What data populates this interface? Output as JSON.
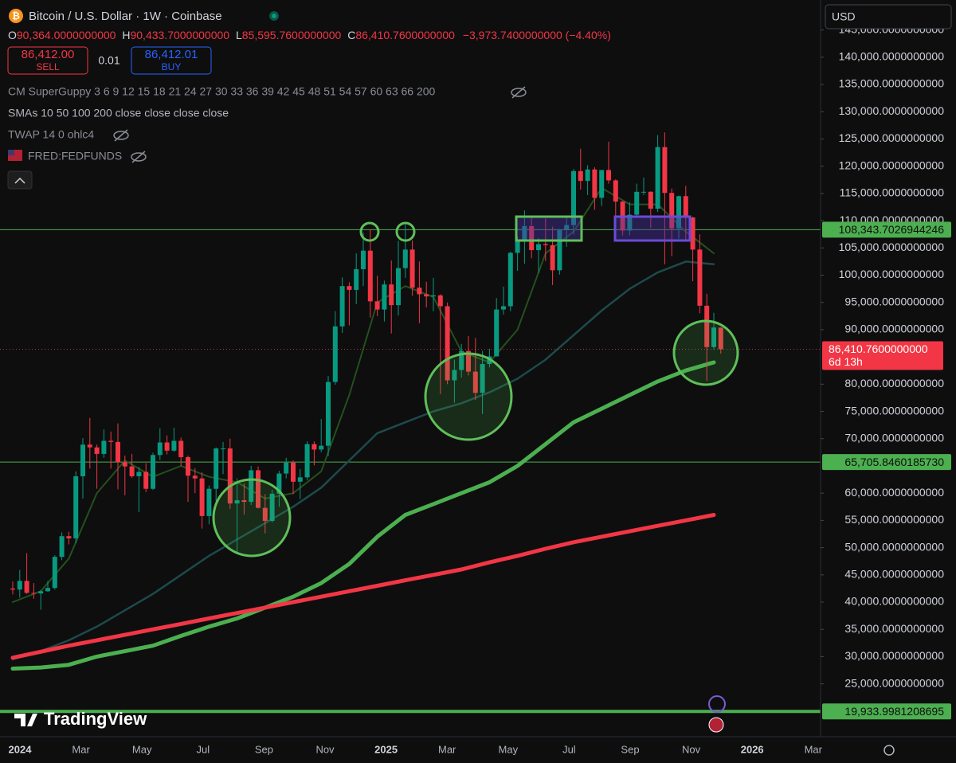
{
  "header": {
    "title": "Bitcoin / U.S. Dollar · 1W · Coinbase",
    "ohlc": [
      {
        "key": "O",
        "value": "90,364.0000000000"
      },
      {
        "key": "H",
        "value": "90,433.7000000000"
      },
      {
        "key": "L",
        "value": "85,595.7600000000"
      },
      {
        "key": "C",
        "value": "86,410.7600000000"
      }
    ],
    "change": "−3,973.7400000000 (−4.40%)",
    "sell": {
      "price": "86,412.00",
      "label": "SELL"
    },
    "spread": "0.01",
    "buy": {
      "price": "86,412.01",
      "label": "BUY"
    },
    "indicators": [
      "CM SuperGuppy 3 6 9 12 15 18 21 24 27 30 33 36 39 42 45 48 51 54 57 60 63 66 200",
      "SMAs 10 50 100 200 close close close close",
      "TWAP 14 0 ohlc4",
      "FRED:FEDFUNDS"
    ],
    "currency": "USD",
    "logo": "TradingView"
  },
  "chart_data": {
    "type": "candlestick",
    "up_color": "#089981",
    "down_color": "#f23645",
    "ylim": [
      15300,
      150500
    ],
    "yticks": [
      {
        "value": 25000,
        "label": "25,000.0000000000"
      },
      {
        "value": 30000,
        "label": "30,000.0000000000"
      },
      {
        "value": 35000,
        "label": "35,000.0000000000"
      },
      {
        "value": 40000,
        "label": "40,000.0000000000"
      },
      {
        "value": 45000,
        "label": "45,000.0000000000"
      },
      {
        "value": 50000,
        "label": "50,000.0000000000"
      },
      {
        "value": 55000,
        "label": "55,000.0000000000"
      },
      {
        "value": 60000,
        "label": "60,000.0000000000"
      },
      {
        "value": 70000,
        "label": "70,000.0000000000"
      },
      {
        "value": 75000,
        "label": "75,000.0000000000"
      },
      {
        "value": 80000,
        "label": "80,000.0000000000"
      },
      {
        "value": 90000,
        "label": "90,000.0000000000"
      },
      {
        "value": 95000,
        "label": "95,000.0000000000"
      },
      {
        "value": 100000,
        "label": "100,000.0000000000"
      },
      {
        "value": 105000,
        "label": "105,000.0000000000"
      },
      {
        "value": 110000,
        "label": "110,000.0000000000"
      },
      {
        "value": 115000,
        "label": "115,000.0000000000"
      },
      {
        "value": 120000,
        "label": "120,000.0000000000"
      },
      {
        "value": 125000,
        "label": "125,000.0000000000"
      },
      {
        "value": 130000,
        "label": "130,000.0000000000"
      },
      {
        "value": 135000,
        "label": "135,000.0000000000"
      },
      {
        "value": 140000,
        "label": "140,000.0000000000"
      },
      {
        "value": 145000,
        "label": "145,000.0000000000"
      }
    ],
    "x_labels": [
      "2024",
      "Mar",
      "May",
      "Jul",
      "Sep",
      "Nov",
      "2025",
      "Mar",
      "May",
      "Jul",
      "Sep",
      "Nov",
      "2026",
      "Mar"
    ],
    "candles": [
      [
        42500,
        43800,
        41400,
        42300
      ],
      [
        42300,
        45900,
        40800,
        43900
      ],
      [
        43900,
        49000,
        41500,
        41700
      ],
      [
        41700,
        43500,
        40600,
        41600
      ],
      [
        41600,
        42200,
        38600,
        42000
      ],
      [
        42000,
        43900,
        41900,
        42600
      ],
      [
        42600,
        48600,
        42300,
        48300
      ],
      [
        48300,
        52800,
        47700,
        52100
      ],
      [
        52100,
        52900,
        50600,
        51700
      ],
      [
        51700,
        64000,
        50800,
        63100
      ],
      [
        63100,
        70100,
        59000,
        68900
      ],
      [
        68900,
        73800,
        64500,
        68400
      ],
      [
        68400,
        68900,
        60800,
        67200
      ],
      [
        67200,
        71700,
        66500,
        69600
      ],
      [
        69600,
        71300,
        64500,
        69400
      ],
      [
        69400,
        72800,
        60700,
        65700
      ],
      [
        65700,
        66900,
        59600,
        64900
      ],
      [
        64900,
        67200,
        62800,
        63100
      ],
      [
        63100,
        64800,
        56500,
        63900
      ],
      [
        63900,
        65500,
        60200,
        60800
      ],
      [
        60800,
        67400,
        60600,
        67000
      ],
      [
        67000,
        71900,
        66100,
        69300
      ],
      [
        69300,
        70600,
        67100,
        67800
      ],
      [
        67800,
        72000,
        67600,
        69600
      ],
      [
        69600,
        70200,
        65000,
        66600
      ],
      [
        66600,
        66900,
        58400,
        63200
      ],
      [
        63200,
        64600,
        60000,
        62700
      ],
      [
        62700,
        63800,
        53500,
        55800
      ],
      [
        55800,
        61400,
        54300,
        60800
      ],
      [
        60800,
        68400,
        58500,
        68200
      ],
      [
        68200,
        69400,
        63500,
        68200
      ],
      [
        68200,
        70000,
        57100,
        58100
      ],
      [
        58100,
        62700,
        49000,
        58700
      ],
      [
        58700,
        61800,
        56100,
        58400
      ],
      [
        58400,
        65000,
        57800,
        64200
      ],
      [
        64200,
        64900,
        57200,
        57300
      ],
      [
        57300,
        59800,
        52600,
        54900
      ],
      [
        54900,
        60600,
        54600,
        59900
      ],
      [
        59900,
        64100,
        57500,
        63600
      ],
      [
        63600,
        66500,
        62700,
        65600
      ],
      [
        65600,
        66000,
        59800,
        62100
      ],
      [
        62100,
        64400,
        58900,
        62900
      ],
      [
        62900,
        69500,
        62400,
        69000
      ],
      [
        69000,
        69500,
        65100,
        68000
      ],
      [
        68000,
        73600,
        67500,
        68700
      ],
      [
        68700,
        81500,
        66800,
        80400
      ],
      [
        80400,
        93400,
        79900,
        90600
      ],
      [
        90600,
        99600,
        89400,
        98000
      ],
      [
        98000,
        98700,
        90800,
        97300
      ],
      [
        97300,
        104000,
        94700,
        101100
      ],
      [
        101100,
        107800,
        98000,
        104500
      ],
      [
        104500,
        108300,
        92200,
        95200
      ],
      [
        95200,
        99900,
        92500,
        93700
      ],
      [
        93700,
        99000,
        91500,
        98300
      ],
      [
        98300,
        102700,
        89300,
        94500
      ],
      [
        94500,
        106300,
        92600,
        101300
      ],
      [
        101300,
        109300,
        99500,
        104700
      ],
      [
        104700,
        106400,
        96200,
        97700
      ],
      [
        97700,
        102500,
        91200,
        96500
      ],
      [
        96500,
        98800,
        94100,
        96100
      ],
      [
        96100,
        99500,
        93400,
        96300
      ],
      [
        96300,
        96500,
        78200,
        94300
      ],
      [
        94300,
        95000,
        80000,
        80700
      ],
      [
        80700,
        84500,
        76600,
        82600
      ],
      [
        82600,
        87400,
        81200,
        86100
      ],
      [
        86100,
        88800,
        81600,
        82300
      ],
      [
        82300,
        88500,
        77100,
        78400
      ],
      [
        78400,
        86100,
        74500,
        83700
      ],
      [
        83700,
        86500,
        83100,
        85100
      ],
      [
        85100,
        95800,
        85100,
        93700
      ],
      [
        93700,
        97900,
        92800,
        94300
      ],
      [
        94300,
        104300,
        93400,
        104100
      ],
      [
        104100,
        107100,
        100800,
        106500
      ],
      [
        106500,
        111900,
        102100,
        109000
      ],
      [
        109000,
        110700,
        103100,
        104600
      ],
      [
        104600,
        106800,
        100400,
        105700
      ],
      [
        105700,
        110400,
        102600,
        105500
      ],
      [
        105500,
        108900,
        98200,
        100900
      ],
      [
        100900,
        108500,
        100100,
        108400
      ],
      [
        108400,
        110500,
        105200,
        109200
      ],
      [
        109200,
        119500,
        107500,
        119100
      ],
      [
        119100,
        123200,
        115700,
        117300
      ],
      [
        117300,
        120200,
        114700,
        119400
      ],
      [
        119400,
        119800,
        112000,
        114200
      ],
      [
        114200,
        119300,
        112700,
        119300
      ],
      [
        119300,
        124500,
        116800,
        117400
      ],
      [
        117400,
        117600,
        110700,
        113500
      ],
      [
        113500,
        113600,
        107300,
        108200
      ],
      [
        108200,
        113400,
        107300,
        111100
      ],
      [
        111100,
        116800,
        110600,
        115300
      ],
      [
        115300,
        117900,
        114700,
        115300
      ],
      [
        115300,
        115400,
        108700,
        112200
      ],
      [
        112200,
        125700,
        111600,
        123500
      ],
      [
        123500,
        126200,
        102000,
        115100
      ],
      [
        115100,
        115900,
        103500,
        108600
      ],
      [
        108600,
        114600,
        106700,
        114500
      ],
      [
        114500,
        116400,
        106300,
        110600
      ],
      [
        110600,
        110700,
        98900,
        104700
      ],
      [
        104700,
        107500,
        93000,
        94400
      ],
      [
        94400,
        96600,
        80600,
        86800
      ],
      [
        86800,
        93100,
        86300,
        90400
      ],
      [
        90364,
        90433.7,
        85595.76,
        86410.76
      ]
    ],
    "lines": [
      {
        "color": "#24501f",
        "width": 2,
        "values": [
          40000,
          42000,
          48000,
          60000,
          66000,
          63000,
          65000,
          63000,
          62000,
          59000,
          60000,
          64000,
          78000,
          95000,
          98000,
          96000,
          86000,
          84000,
          90000,
          104000,
          108000,
          116000,
          113000,
          113000,
          108000,
          104000
        ]
      },
      {
        "color": "#1d4a4c",
        "width": 2.5,
        "values": [
          29500,
          31000,
          33000,
          35500,
          38500,
          41500,
          45000,
          48500,
          51500,
          54500,
          57500,
          61000,
          66000,
          71000,
          73000,
          75000,
          76500,
          78500,
          81000,
          84500,
          89000,
          93500,
          97500,
          100500,
          102500,
          102000
        ]
      },
      {
        "color": "#4caf50",
        "width": 5,
        "values": [
          27800,
          28000,
          28500,
          30000,
          31000,
          32000,
          33800,
          35500,
          37000,
          39000,
          41000,
          43500,
          47000,
          52000,
          56000,
          58000,
          60000,
          62000,
          65000,
          69000,
          73000,
          75500,
          78000,
          80500,
          82500,
          84000
        ]
      },
      {
        "color": "#f23645",
        "width": 5,
        "values": [
          29800,
          30900,
          32000,
          33000,
          34000,
          35000,
          36000,
          37000,
          38000,
          39000,
          40000,
          41000,
          42000,
          43000,
          44000,
          45000,
          46000,
          47300,
          48500,
          49800,
          51000,
          52000,
          53000,
          54000,
          55000,
          56000
        ]
      }
    ],
    "levels": [
      {
        "value": 108343.7026944246,
        "label": "108,343.7026944246",
        "color": "#4caf50"
      },
      {
        "value": 65705.846018573,
        "label": "65,705.8460185730",
        "color": "#4caf50"
      },
      {
        "value": 19933.9981208695,
        "label": "19,933.9981208695",
        "color": "#4caf50"
      }
    ],
    "last_price": {
      "value": 86410.76,
      "label": "86,410.7600000000",
      "color": "#f23645"
    },
    "countdown": "6d 13h"
  }
}
